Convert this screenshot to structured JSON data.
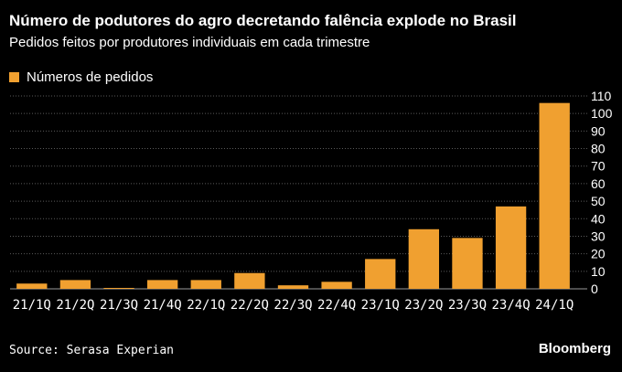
{
  "header": {
    "title": "Número de podutores do agro decretando falência explode no Brasil",
    "subtitle": "Pedidos feitos por produtores individuais em cada trimestre"
  },
  "legend": {
    "label": "Números de pedidos"
  },
  "footer": {
    "source": "Source: Serasa Experian",
    "brand": "Bloomberg"
  },
  "colors": {
    "bar": "#f0a030",
    "grid": "#5a5a5a",
    "background": "#000000",
    "text": "#ffffff"
  },
  "chart_data": {
    "type": "bar",
    "title": "Número de podutores do agro decretando falência explode no Brasil",
    "subtitle": "Pedidos feitos por produtores individuais em cada trimestre",
    "xlabel": "",
    "ylabel": "",
    "categories": [
      "21/1Q",
      "21/2Q",
      "21/3Q",
      "21/4Q",
      "22/1Q",
      "22/2Q",
      "22/3Q",
      "22/4Q",
      "23/1Q",
      "23/2Q",
      "23/3Q",
      "23/4Q",
      "24/1Q"
    ],
    "series": [
      {
        "name": "Números de pedidos",
        "values": [
          3,
          5,
          0,
          5,
          5,
          9,
          2,
          4,
          17,
          34,
          29,
          47,
          106
        ]
      }
    ],
    "ylim": [
      0,
      110
    ],
    "yticks": [
      0,
      10,
      20,
      30,
      40,
      50,
      60,
      70,
      80,
      90,
      100,
      110
    ],
    "y_axis_side": "right",
    "grid": true,
    "legend_position": "top-left"
  }
}
